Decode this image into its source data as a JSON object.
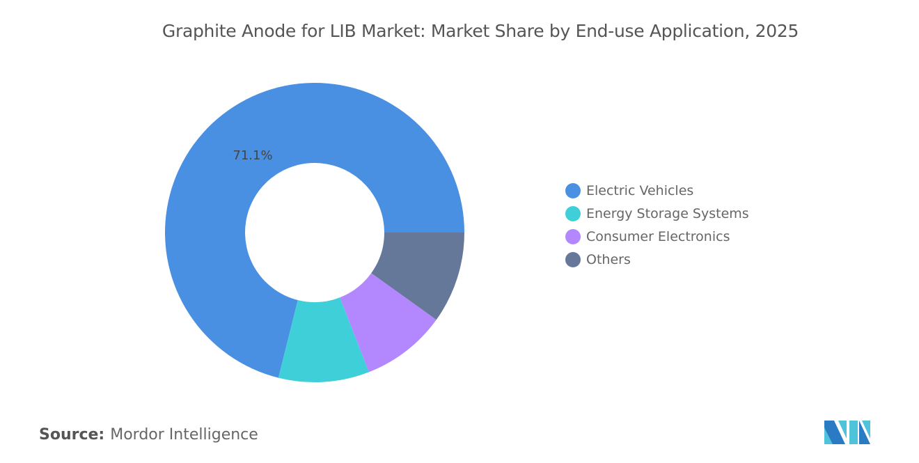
{
  "chart_data": {
    "type": "pie",
    "title": "Graphite Anode for LIB Market: Market Share by End-use Application, 2025",
    "categories": [
      "Electric Vehicles",
      "Energy Storage Systems",
      "Consumer Electronics",
      "Others"
    ],
    "values": [
      71.1,
      9.8,
      9.2,
      9.9
    ],
    "value_unit": "%",
    "data_labels": [
      "71.1%"
    ],
    "colors": [
      "#4A90E2",
      "#3ECFD8",
      "#B388FF",
      "#66789A"
    ],
    "donut": true,
    "legend_position": "right"
  },
  "source": {
    "label": "Source:",
    "text": "Mordor Intelligence"
  },
  "logo": {
    "text": "Mordor Intelligence logo"
  }
}
